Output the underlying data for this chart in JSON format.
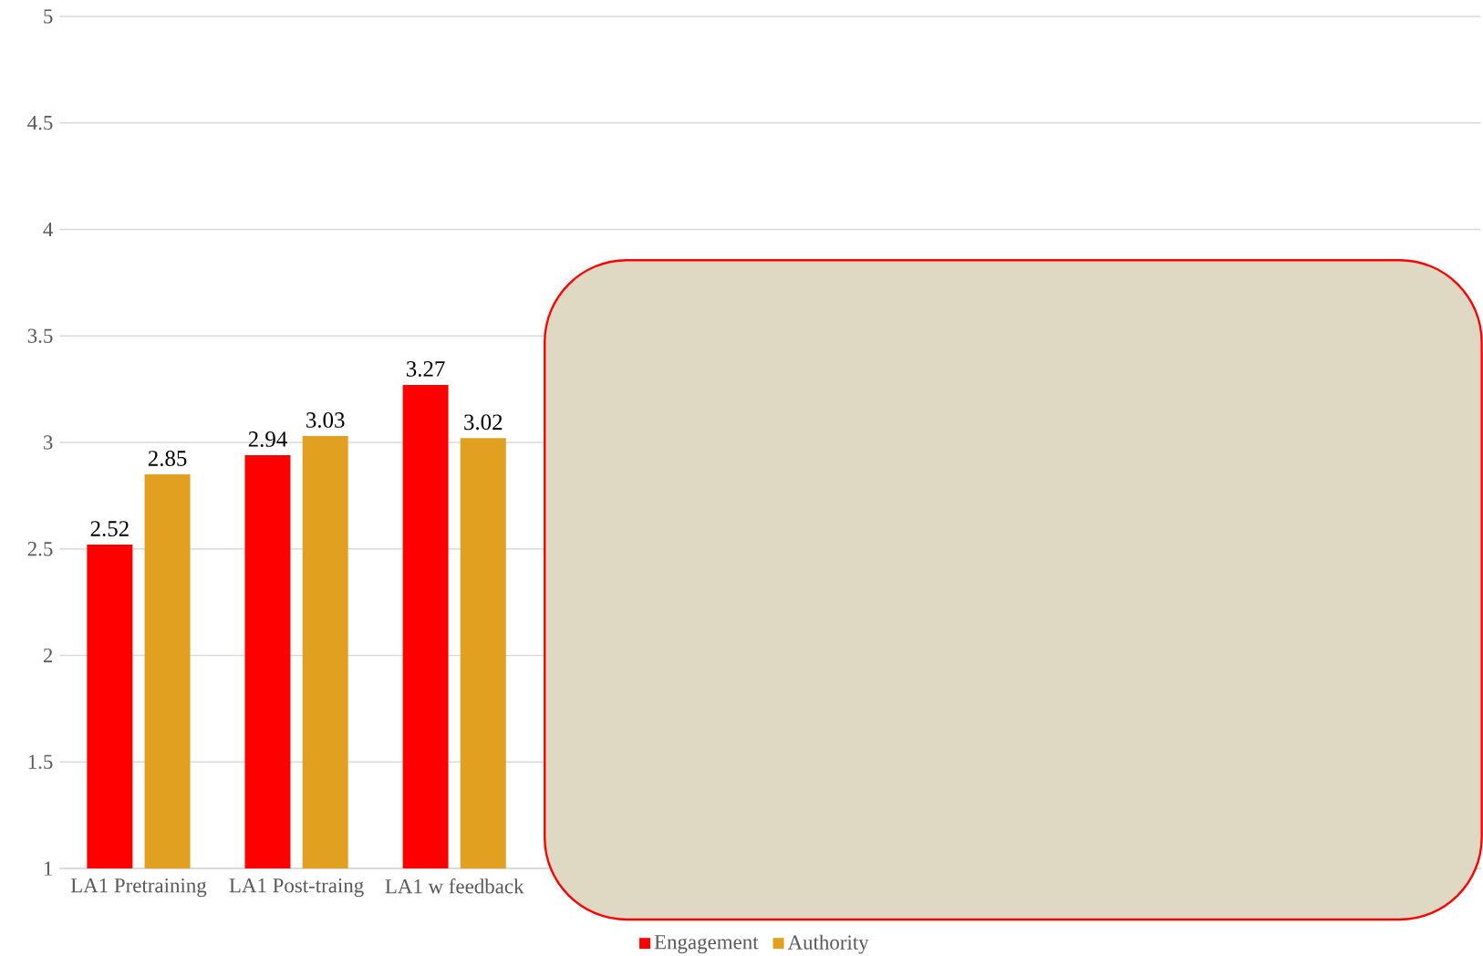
{
  "chart_data": {
    "type": "bar",
    "categories": [
      "LA1 Pretraining",
      "LA1 Post-traing",
      "LA1 w feedback",
      null,
      null,
      null,
      null,
      null,
      null
    ],
    "series": [
      {
        "name": "Engagement",
        "color": "#ff0000",
        "values": [
          2.52,
          2.94,
          3.27,
          null,
          null,
          null,
          null,
          null,
          null
        ]
      },
      {
        "name": "Authority",
        "color": "#e2a020",
        "values": [
          2.85,
          3.03,
          3.02,
          null,
          null,
          null,
          null,
          null,
          null
        ]
      }
    ],
    "ylim": [
      1,
      5
    ],
    "yticks": [
      1,
      1.5,
      2,
      2.5,
      3,
      3.5,
      4,
      4.5,
      5
    ],
    "grid": "y",
    "legend": "bottom",
    "data_labels": true
  }
}
